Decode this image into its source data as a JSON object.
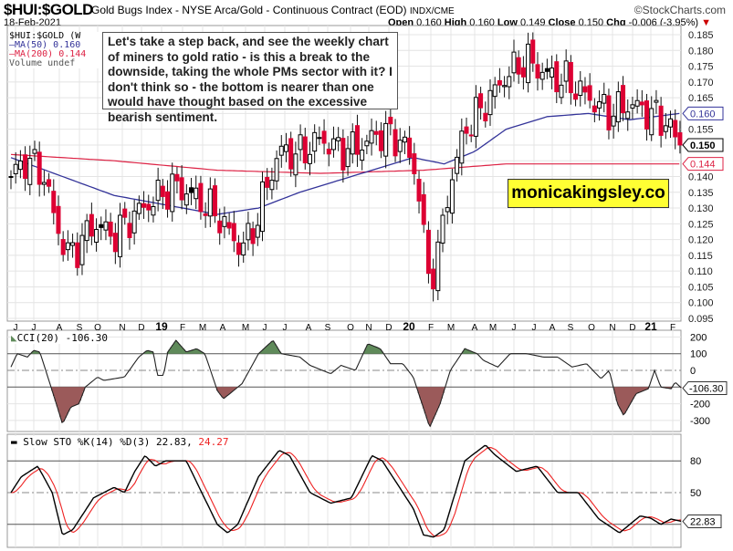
{
  "header": {
    "symbol": "$HUI:$GOLD",
    "description": "Gold Bugs Index - NYSE Arca/Gold - Continuous Contract (EOD)",
    "exchange": "INDX/CME",
    "brand": "©StockCharts.com",
    "date": "18-Feb-2021",
    "open_label": "Open",
    "open": "0.160",
    "high_label": "High",
    "high": "0.160",
    "low_label": "Low",
    "low": "0.149",
    "close_label": "Close",
    "close": "0.150",
    "chg_label": "Chg",
    "chg": "-0.006 (-3.95%)"
  },
  "legend": {
    "symbol": "$HUI:$GOLD (W",
    "ma50": "MA(50) 0.160",
    "ma200": "MA(200) 0.144",
    "volume": "Volume undef"
  },
  "annotation": "Let's take a step back, and see the weekly chart of miners to gold ratio - is this a break to the downside, taking the whole PMs sector with it? I don't think so - the bottom is nearer than one would have thought based on the excessive bearish sentiment.",
  "watermark": "monicakingsley.co",
  "colors": {
    "bear": "#dd0033",
    "ma50": "#333399",
    "ma200": "#dd2244",
    "cci_pos": "#5f8a5a",
    "cci_neg": "#9b5a5a",
    "k": "#000000",
    "d": "#ee2222"
  },
  "chart_data": [
    {
      "type": "candlestick",
      "title": "$HUI:$GOLD weekly",
      "ylim": [
        0.095,
        0.185
      ],
      "yticks": [
        "0.185",
        "0.180",
        "0.175",
        "0.170",
        "0.165",
        "0.160",
        "0.155",
        "0.150",
        "0.145",
        "0.140",
        "0.135",
        "0.130",
        "0.125",
        "0.120",
        "0.115",
        "0.110",
        "0.105",
        "0.100",
        "0.095"
      ],
      "xticks": [
        "J",
        "J",
        "A",
        "S",
        "O",
        "N",
        "D",
        "19",
        "F",
        "M",
        "A",
        "M",
        "J",
        "J",
        "A",
        "S",
        "O",
        "N",
        "D",
        "20",
        "F",
        "M",
        "A",
        "M",
        "J",
        "J",
        "A",
        "S",
        "O",
        "N",
        "D",
        "21",
        "F"
      ],
      "close_keyframes_month_value": [
        [
          0,
          0.14
        ],
        [
          0.7,
          0.145
        ],
        [
          1.5,
          0.142
        ],
        [
          2.2,
          0.125
        ],
        [
          2.7,
          0.115
        ],
        [
          3.3,
          0.118
        ],
        [
          4,
          0.125
        ],
        [
          5,
          0.121
        ],
        [
          6,
          0.128
        ],
        [
          7,
          0.133
        ],
        [
          8,
          0.137
        ],
        [
          9,
          0.133
        ],
        [
          10,
          0.128
        ],
        [
          11,
          0.118
        ],
        [
          11.6,
          0.12
        ],
        [
          12.3,
          0.135
        ],
        [
          13,
          0.148
        ],
        [
          14,
          0.147
        ],
        [
          15,
          0.152
        ],
        [
          16,
          0.148
        ],
        [
          17,
          0.15
        ],
        [
          18,
          0.154
        ],
        [
          19,
          0.151
        ],
        [
          19.7,
          0.14
        ],
        [
          20.2,
          0.108
        ],
        [
          20.6,
          0.112
        ],
        [
          21.2,
          0.135
        ],
        [
          22,
          0.155
        ],
        [
          23,
          0.163
        ],
        [
          24,
          0.172
        ],
        [
          25,
          0.177
        ],
        [
          26,
          0.172
        ],
        [
          27,
          0.17
        ],
        [
          28,
          0.165
        ],
        [
          29,
          0.16
        ],
        [
          30,
          0.163
        ],
        [
          31,
          0.16
        ],
        [
          31.8,
          0.157
        ],
        [
          32.4,
          0.15
        ]
      ],
      "ma50_keyframes": [
        [
          0,
          0.146
        ],
        [
          2.5,
          0.14
        ],
        [
          5,
          0.134
        ],
        [
          7.5,
          0.131
        ],
        [
          10,
          0.128
        ],
        [
          12,
          0.13
        ],
        [
          14,
          0.135
        ],
        [
          17,
          0.141
        ],
        [
          19.5,
          0.146
        ],
        [
          21,
          0.144
        ],
        [
          22.5,
          0.148
        ],
        [
          24,
          0.155
        ],
        [
          26,
          0.159
        ],
        [
          28,
          0.16
        ],
        [
          30,
          0.158
        ],
        [
          32.4,
          0.16
        ]
      ],
      "ma200_keyframes": [
        [
          0,
          0.147
        ],
        [
          5,
          0.145
        ],
        [
          10,
          0.142
        ],
        [
          15,
          0.141
        ],
        [
          20,
          0.142
        ],
        [
          24,
          0.144
        ],
        [
          32.4,
          0.144
        ]
      ],
      "last_values": {
        "ma50": "0.160",
        "close": "0.150",
        "ma200": "0.144"
      }
    },
    {
      "type": "line",
      "title": "CCI(20) -106.30",
      "ylim": [
        -370,
        230
      ],
      "yticks": [
        "200",
        "100",
        "0",
        "-100",
        "-200",
        "-300"
      ],
      "last_value": "-106.30",
      "keyframes": [
        [
          0,
          20
        ],
        [
          0.3,
          100
        ],
        [
          0.8,
          80
        ],
        [
          1.1,
          120
        ],
        [
          1.4,
          110
        ],
        [
          2.2,
          -200
        ],
        [
          2.5,
          -320
        ],
        [
          2.9,
          -220
        ],
        [
          3.3,
          -200
        ],
        [
          3.6,
          -100
        ],
        [
          4.2,
          -40
        ],
        [
          4.5,
          -60
        ],
        [
          5,
          -50
        ],
        [
          5.5,
          -40
        ],
        [
          6.2,
          80
        ],
        [
          6.6,
          120
        ],
        [
          6.9,
          110
        ],
        [
          7.1,
          -30
        ],
        [
          7.4,
          -30
        ],
        [
          7.6,
          110
        ],
        [
          8,
          180
        ],
        [
          8.5,
          110
        ],
        [
          9,
          130
        ],
        [
          9.4,
          100
        ],
        [
          10,
          -120
        ],
        [
          10.3,
          -170
        ],
        [
          10.8,
          -120
        ],
        [
          11.2,
          -80
        ],
        [
          12,
          100
        ],
        [
          12.7,
          180
        ],
        [
          13.1,
          100
        ],
        [
          14,
          80
        ],
        [
          14.5,
          30
        ],
        [
          15.5,
          -20
        ],
        [
          16,
          30
        ],
        [
          16.7,
          0
        ],
        [
          17.3,
          160
        ],
        [
          17.9,
          130
        ],
        [
          18.4,
          40
        ],
        [
          19,
          40
        ],
        [
          19.5,
          -40
        ],
        [
          20.3,
          -340
        ],
        [
          20.8,
          -200
        ],
        [
          21.3,
          0
        ],
        [
          22,
          130
        ],
        [
          22.6,
          100
        ],
        [
          22.9,
          60
        ],
        [
          23.6,
          20
        ],
        [
          24.2,
          100
        ],
        [
          25,
          100
        ],
        [
          25.8,
          80
        ],
        [
          26.5,
          80
        ],
        [
          27.2,
          20
        ],
        [
          27.9,
          40
        ],
        [
          28.6,
          -50
        ],
        [
          29,
          0
        ],
        [
          29.4,
          -200
        ],
        [
          29.7,
          -270
        ],
        [
          30.3,
          -140
        ],
        [
          30.9,
          -110
        ],
        [
          31.2,
          0
        ],
        [
          31.5,
          -100
        ],
        [
          32,
          -110
        ],
        [
          32.2,
          -70
        ],
        [
          32.5,
          -106.3
        ]
      ]
    },
    {
      "type": "line",
      "title": "Slow STO %K(14) %D(3)",
      "k_value": "22.83",
      "d_value": "24.27",
      "ylim": [
        0,
        100
      ],
      "yticks": [
        "80",
        "50"
      ],
      "k_keyframes": [
        [
          0,
          50
        ],
        [
          0.5,
          65
        ],
        [
          1.3,
          75
        ],
        [
          2,
          50
        ],
        [
          2.5,
          10
        ],
        [
          3,
          15
        ],
        [
          3.5,
          30
        ],
        [
          4,
          45
        ],
        [
          5,
          55
        ],
        [
          5.5,
          50
        ],
        [
          6,
          70
        ],
        [
          6.5,
          85
        ],
        [
          7,
          75
        ],
        [
          7.5,
          80
        ],
        [
          8.5,
          80
        ],
        [
          9,
          60
        ],
        [
          10,
          20
        ],
        [
          10.5,
          12
        ],
        [
          11,
          20
        ],
        [
          12,
          65
        ],
        [
          13,
          90
        ],
        [
          13.5,
          85
        ],
        [
          14.5,
          50
        ],
        [
          15.5,
          40
        ],
        [
          16.5,
          45
        ],
        [
          17.5,
          85
        ],
        [
          18,
          80
        ],
        [
          19,
          50
        ],
        [
          19.5,
          35
        ],
        [
          20,
          10
        ],
        [
          20.5,
          8
        ],
        [
          21,
          15
        ],
        [
          22,
          80
        ],
        [
          23,
          95
        ],
        [
          23.5,
          85
        ],
        [
          24.5,
          70
        ],
        [
          25.5,
          75
        ],
        [
          26.5,
          50
        ],
        [
          27.5,
          50
        ],
        [
          28.5,
          25
        ],
        [
          29.5,
          12
        ],
        [
          30.5,
          28
        ],
        [
          31,
          26
        ],
        [
          31.5,
          20
        ],
        [
          32,
          25
        ],
        [
          32.5,
          22.83
        ]
      ]
    }
  ]
}
